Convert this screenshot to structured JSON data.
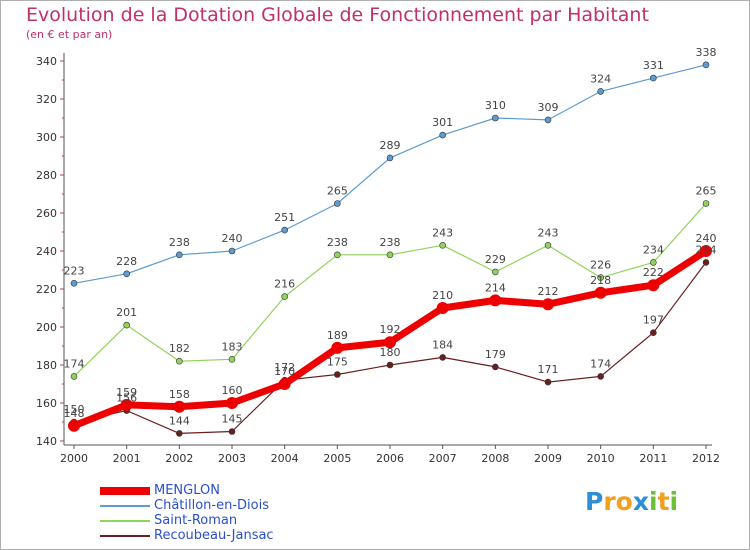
{
  "title": "Evolution de la Dotation Globale de Fonctionnement par Habitant",
  "subtitle": "(en € et par an)",
  "logo": {
    "letters": [
      "P",
      "r",
      "o",
      "x",
      "i",
      "t",
      "i"
    ],
    "colors": [
      "#2e8fd4",
      "#f0a020",
      "#f0a020",
      "#2e8fd4",
      "#6cbf3a",
      "#f0a020",
      "#6cbf3a"
    ]
  },
  "chart_data": {
    "type": "line",
    "title": "Evolution de la Dotation Globale de Fonctionnement par Habitant",
    "subtitle": "(en € et par an)",
    "x": [
      "2000",
      "2001",
      "2002",
      "2003",
      "2004",
      "2005",
      "2006",
      "2007",
      "2008",
      "2009",
      "2010",
      "2011",
      "2012"
    ],
    "ylim": [
      140,
      340
    ],
    "yticks": [
      140,
      160,
      180,
      200,
      220,
      240,
      260,
      280,
      300,
      320,
      340
    ],
    "grid": false,
    "legend": "bottom-left",
    "series": [
      {
        "name": "MENGLON",
        "color": "#ee0000",
        "values": [
          148,
          159,
          158,
          160,
          170,
          189,
          192,
          210,
          214,
          212,
          218,
          222,
          240
        ]
      },
      {
        "name": "Châtillon-en-Diois",
        "color": "#5e9bd0",
        "values": [
          223,
          228,
          238,
          240,
          251,
          265,
          289,
          301,
          310,
          309,
          324,
          331,
          338
        ]
      },
      {
        "name": "Saint-Roman",
        "color": "#8ed35b",
        "values": [
          174,
          201,
          182,
          183,
          216,
          238,
          238,
          243,
          229,
          243,
          226,
          234,
          265
        ]
      },
      {
        "name": "Recoubeau-Jansac",
        "color": "#6a1f1f",
        "values": [
          150,
          156,
          144,
          145,
          172,
          175,
          180,
          184,
          179,
          171,
          174,
          197,
          234
        ]
      }
    ]
  }
}
